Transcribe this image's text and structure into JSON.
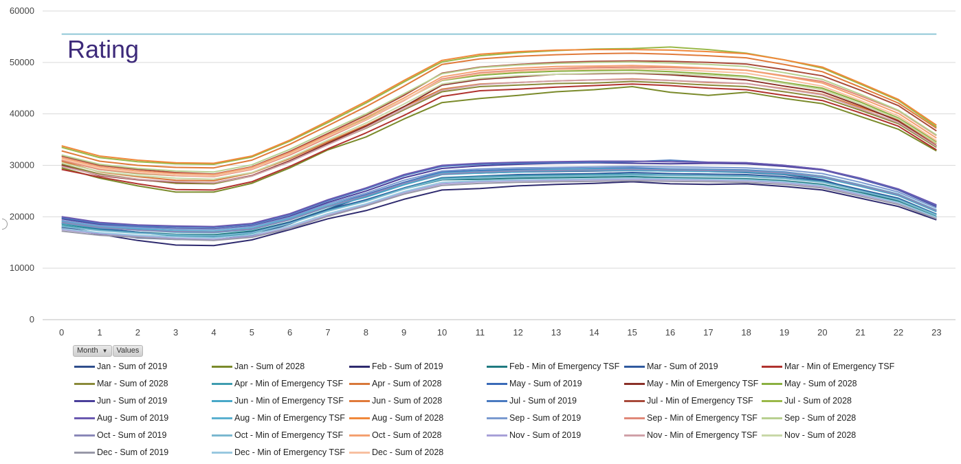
{
  "rating_label": "Rating",
  "rating_value": 55500,
  "rating_color": "#8fc7d6",
  "pivot": {
    "month_label": "Month",
    "values_label": "Values"
  },
  "chart_data": {
    "type": "line",
    "x": [
      0,
      1,
      2,
      3,
      4,
      5,
      6,
      7,
      8,
      9,
      10,
      11,
      12,
      13,
      14,
      15,
      16,
      17,
      18,
      19,
      20,
      21,
      22,
      23
    ],
    "ylim": [
      0,
      60000
    ],
    "yticks": [
      0,
      10000,
      20000,
      30000,
      40000,
      50000,
      60000
    ],
    "grid": true,
    "legend_position": "bottom",
    "series": [
      {
        "name": "Jan - Sum of 2019",
        "color": "#2f4e8c",
        "values": [
          18000,
          16800,
          15900,
          15600,
          15500,
          16400,
          18600,
          21500,
          24000,
          26500,
          28500,
          28500,
          28700,
          28800,
          28900,
          29000,
          28900,
          28800,
          28600,
          28200,
          27200,
          25000,
          23000,
          19700
        ]
      },
      {
        "name": "Jan - Sum of 2028",
        "color": "#7a8a2a",
        "values": [
          29500,
          27500,
          26000,
          24800,
          24800,
          26500,
          29500,
          33000,
          35500,
          39000,
          42200,
          43000,
          43600,
          44300,
          44700,
          45300,
          44200,
          43600,
          44200,
          43000,
          42000,
          39500,
          37000,
          32800
        ]
      },
      {
        "name": "Feb - Sum of 2019",
        "color": "#2e2a6e",
        "values": [
          17800,
          16600,
          15400,
          14500,
          14400,
          15500,
          17500,
          19600,
          21200,
          23400,
          25200,
          25500,
          26000,
          26300,
          26500,
          26800,
          26400,
          26300,
          26400,
          25900,
          25200,
          23600,
          22000,
          19400
        ]
      },
      {
        "name": "Feb - Min of Emergency TSF",
        "color": "#1f7a80",
        "values": [
          18600,
          17600,
          17000,
          16600,
          16500,
          17200,
          19000,
          21500,
          23200,
          25400,
          27200,
          27300,
          27500,
          27600,
          27700,
          27800,
          27600,
          27500,
          27400,
          27000,
          26300,
          24700,
          23000,
          20000
        ]
      },
      {
        "name": "Mar - Sum of 2019",
        "color": "#2f5a9e",
        "values": [
          18800,
          17700,
          17000,
          16400,
          16200,
          17000,
          18900,
          21400,
          23300,
          25600,
          27600,
          27900,
          28200,
          28300,
          28400,
          28600,
          28400,
          28300,
          28200,
          27800,
          27000,
          25300,
          23600,
          20500
        ]
      },
      {
        "name": "Mar - Min of Emergency TSF",
        "color": "#b0322e",
        "values": [
          29200,
          27700,
          26400,
          25300,
          25200,
          26800,
          29800,
          33200,
          36300,
          39700,
          43400,
          44500,
          44800,
          45200,
          45500,
          45800,
          45500,
          45000,
          44700,
          43600,
          42600,
          40200,
          37600,
          33000
        ]
      },
      {
        "name": "Mar - Sum of 2028",
        "color": "#8a8a3a",
        "values": [
          30200,
          28300,
          27300,
          26500,
          26400,
          27900,
          30700,
          34100,
          37200,
          40800,
          44300,
          45300,
          45600,
          45900,
          46000,
          46300,
          46000,
          45600,
          45300,
          44300,
          43200,
          40700,
          38100,
          33500
        ]
      },
      {
        "name": "Apr - Min of Emergency TSF",
        "color": "#3f9cb0",
        "values": [
          18300,
          17400,
          16900,
          16300,
          16000,
          16800,
          18700,
          21200,
          23100,
          25500,
          27500,
          27800,
          28000,
          28100,
          28200,
          28300,
          28100,
          28000,
          27900,
          27500,
          26800,
          25100,
          23400,
          20400
        ]
      },
      {
        "name": "Apr - Sum of 2028",
        "color": "#d8783a",
        "values": [
          30800,
          28700,
          27800,
          27100,
          27000,
          28500,
          31300,
          34600,
          37800,
          41400,
          44800,
          45800,
          46100,
          46400,
          46600,
          46800,
          46500,
          46100,
          45900,
          44900,
          43800,
          41300,
          38800,
          34200
        ]
      },
      {
        "name": "May - Sum of 2019",
        "color": "#3a6ab8",
        "values": [
          19200,
          18200,
          17600,
          17300,
          17100,
          17700,
          19600,
          22200,
          24300,
          26700,
          28700,
          29000,
          29200,
          29300,
          29400,
          29500,
          29300,
          29200,
          29100,
          28700,
          27900,
          26200,
          24400,
          21200
        ]
      },
      {
        "name": "May - Min of Emergency TSF",
        "color": "#8a3028",
        "values": [
          30000,
          28000,
          27200,
          26700,
          26600,
          28000,
          30900,
          34300,
          37600,
          41400,
          45600,
          46700,
          47200,
          47700,
          47800,
          47900,
          47600,
          47100,
          46600,
          45400,
          44300,
          41600,
          38600,
          33800
        ]
      },
      {
        "name": "May - Sum of 2028",
        "color": "#8ab040",
        "values": [
          31000,
          29200,
          28400,
          28000,
          27900,
          29300,
          32200,
          35600,
          39000,
          42700,
          46500,
          47500,
          48000,
          48300,
          48400,
          48500,
          48200,
          47800,
          47300,
          46100,
          45000,
          42300,
          39200,
          34600
        ]
      },
      {
        "name": "Jun - Sum of 2019",
        "color": "#4a3f9a",
        "values": [
          19600,
          18500,
          18000,
          17700,
          17600,
          18200,
          20100,
          22800,
          25000,
          27600,
          29400,
          29900,
          30200,
          30400,
          30500,
          30400,
          30300,
          30400,
          30300,
          29800,
          29100,
          27300,
          25200,
          22000
        ]
      },
      {
        "name": "Jun - Min of Emergency TSF",
        "color": "#48a8c8",
        "values": [
          18700,
          17800,
          17400,
          17000,
          16900,
          17500,
          19400,
          21900,
          23800,
          26200,
          28200,
          28500,
          28700,
          28900,
          29000,
          29000,
          28900,
          28800,
          28700,
          28300,
          27600,
          25900,
          24100,
          21000
        ]
      },
      {
        "name": "Jun - Sum of 2028",
        "color": "#e07a3a",
        "values": [
          32800,
          30800,
          30000,
          29600,
          29500,
          31000,
          34100,
          37700,
          41400,
          45400,
          49600,
          50700,
          51200,
          51500,
          51700,
          51800,
          51600,
          51300,
          50900,
          49600,
          48200,
          45200,
          42100,
          37200
        ]
      },
      {
        "name": "Jul - Sum of 2019",
        "color": "#4a7ac0",
        "values": [
          19800,
          18700,
          18200,
          18000,
          17900,
          18500,
          20400,
          23100,
          25400,
          28000,
          29800,
          30200,
          30400,
          30500,
          30600,
          30700,
          31000,
          30600,
          30500,
          30000,
          29200,
          27400,
          25300,
          22200
        ]
      },
      {
        "name": "Jul - Min of Emergency TSF",
        "color": "#a84a3a",
        "values": [
          31800,
          30000,
          29200,
          28600,
          28300,
          29700,
          32700,
          36200,
          39700,
          43600,
          47900,
          49100,
          49600,
          50000,
          50200,
          50300,
          50200,
          50000,
          49700,
          48600,
          47400,
          44600,
          41600,
          36700
        ]
      },
      {
        "name": "Jul - Sum of 2028",
        "color": "#9ab848",
        "values": [
          33500,
          31500,
          30700,
          30300,
          30200,
          31600,
          34700,
          38300,
          42100,
          46200,
          50100,
          51300,
          51900,
          52300,
          52600,
          52700,
          53000,
          52500,
          51800,
          50500,
          48900,
          45800,
          42600,
          37500
        ]
      },
      {
        "name": "Aug - Sum of 2019",
        "color": "#6a58b0",
        "values": [
          20000,
          18900,
          18400,
          18200,
          18100,
          18700,
          20600,
          23300,
          25600,
          28200,
          30000,
          30400,
          30600,
          30700,
          30800,
          30800,
          30700,
          30600,
          30500,
          30000,
          29200,
          27500,
          25400,
          22300
        ]
      },
      {
        "name": "Aug - Min of Emergency TSF",
        "color": "#5ab0d0",
        "values": [
          19000,
          18100,
          17700,
          17300,
          17200,
          17800,
          19700,
          22200,
          24100,
          26500,
          28500,
          28800,
          29000,
          29200,
          29300,
          29300,
          29200,
          29100,
          29000,
          28600,
          27900,
          26200,
          24400,
          21300
        ]
      },
      {
        "name": "Aug - Sum of 2028",
        "color": "#f0883a",
        "values": [
          33800,
          31800,
          31000,
          30500,
          30400,
          31800,
          34900,
          38600,
          42400,
          46500,
          50400,
          51600,
          52100,
          52400,
          52500,
          52500,
          52400,
          52100,
          51700,
          50500,
          49100,
          46000,
          42800,
          37800
        ]
      },
      {
        "name": "Sep - Sum of 2019",
        "color": "#7a9ad0",
        "values": [
          19300,
          18300,
          17900,
          17600,
          17500,
          18100,
          19900,
          22500,
          24600,
          27100,
          28900,
          29300,
          29500,
          29600,
          29700,
          29800,
          29700,
          29600,
          29500,
          29100,
          28400,
          26700,
          24800,
          21700
        ]
      },
      {
        "name": "Sep - Min of Emergency TSF",
        "color": "#e08878",
        "values": [
          31000,
          29200,
          28500,
          28000,
          27800,
          29200,
          32000,
          35400,
          38800,
          42600,
          46800,
          48000,
          48500,
          48800,
          49000,
          49100,
          49000,
          48800,
          48500,
          47400,
          46300,
          43500,
          40600,
          35800
        ]
      },
      {
        "name": "Sep - Sum of 2028",
        "color": "#b8d090",
        "values": [
          32000,
          30200,
          29400,
          28900,
          28700,
          30100,
          33100,
          36600,
          40000,
          43900,
          47800,
          49000,
          49500,
          49800,
          50000,
          50100,
          49900,
          49600,
          49200,
          48000,
          46700,
          43800,
          40700,
          35900
        ]
      },
      {
        "name": "Oct - Sum of 2019",
        "color": "#8a88b8",
        "values": [
          18900,
          17900,
          17400,
          17100,
          17000,
          17600,
          19400,
          22000,
          24100,
          26500,
          28300,
          28700,
          28900,
          29000,
          29100,
          29200,
          29100,
          29000,
          28900,
          28500,
          27800,
          26100,
          24300,
          21200
        ]
      },
      {
        "name": "Oct - Min of Emergency TSF",
        "color": "#7ab8d0",
        "values": [
          18100,
          17300,
          16800,
          16500,
          16300,
          16900,
          18700,
          21100,
          23000,
          25400,
          27300,
          27600,
          27800,
          27900,
          28000,
          28100,
          28000,
          27900,
          27800,
          27400,
          26700,
          25000,
          23300,
          20300
        ]
      },
      {
        "name": "Oct - Sum of 2028",
        "color": "#f4a070",
        "values": [
          31500,
          29700,
          28900,
          28400,
          28200,
          29600,
          32500,
          35900,
          39300,
          43100,
          47200,
          48400,
          48900,
          49200,
          49300,
          49400,
          49200,
          48900,
          48500,
          47300,
          46000,
          43100,
          40100,
          35300
        ]
      },
      {
        "name": "Nov - Sum of 2019",
        "color": "#a8a0d8",
        "values": [
          17500,
          16700,
          16200,
          15800,
          15600,
          16200,
          17900,
          20300,
          22300,
          24700,
          26400,
          26800,
          27000,
          27100,
          27200,
          27300,
          27200,
          27100,
          27000,
          26600,
          25900,
          24300,
          22700,
          19800
        ]
      },
      {
        "name": "Nov - Min of Emergency TSF",
        "color": "#d0a0a8",
        "values": [
          29800,
          28100,
          27300,
          26800,
          26600,
          27900,
          30700,
          34000,
          37300,
          41000,
          44600,
          45700,
          46100,
          46400,
          46600,
          46700,
          46500,
          46200,
          45900,
          44800,
          43700,
          41000,
          38300,
          33700
        ]
      },
      {
        "name": "Nov - Sum of 2028",
        "color": "#c8d8a8",
        "values": [
          30500,
          28800,
          28000,
          27500,
          27300,
          28600,
          31500,
          34900,
          38200,
          41900,
          45800,
          46900,
          47400,
          47700,
          47900,
          48000,
          47800,
          47500,
          47100,
          45900,
          44700,
          41900,
          39000,
          34300
        ]
      },
      {
        "name": "Dec - Sum of 2019",
        "color": "#9898a8",
        "values": [
          17200,
          16400,
          16000,
          15600,
          15400,
          16000,
          17700,
          20100,
          22100,
          24400,
          26100,
          26500,
          26700,
          26800,
          26900,
          27000,
          26900,
          26800,
          26700,
          26300,
          25600,
          24000,
          22400,
          19600
        ]
      },
      {
        "name": "Dec - Min of Emergency TSF",
        "color": "#98c8e0",
        "values": [
          17700,
          16900,
          16400,
          16100,
          15900,
          16500,
          18200,
          20600,
          22500,
          24900,
          26700,
          27000,
          27200,
          27300,
          27400,
          27500,
          27400,
          27300,
          27200,
          26800,
          26100,
          24500,
          22800,
          19900
        ]
      },
      {
        "name": "Dec - Sum of 2028",
        "color": "#f8c0a0",
        "values": [
          31200,
          29400,
          28600,
          28100,
          27900,
          29300,
          32200,
          35600,
          38900,
          42700,
          46600,
          47800,
          48300,
          48600,
          48700,
          48800,
          48600,
          48300,
          47900,
          46700,
          45400,
          42600,
          39600,
          34800
        ]
      }
    ]
  }
}
